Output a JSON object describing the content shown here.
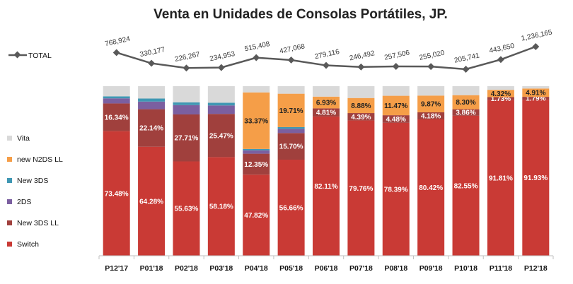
{
  "chart_data": {
    "type": "bar",
    "stacked": true,
    "percent_stacked": true,
    "title": "Venta en Unidades de Consolas Portátiles, JP.",
    "xlabel": "",
    "ylabel": "",
    "ylim": [
      0,
      100
    ],
    "categories": [
      "P12'17",
      "P01'18",
      "P02'18",
      "P03'18",
      "P04'18",
      "P05'18",
      "P06'18",
      "P07'18",
      "P08'18",
      "P09'18",
      "P10'18",
      "P11'18",
      "P12'18"
    ],
    "series": [
      {
        "name": "Switch",
        "color": "#c93a35",
        "values": [
          73.48,
          64.28,
          55.63,
          58.18,
          47.82,
          56.66,
          82.11,
          79.76,
          78.39,
          80.42,
          82.55,
          91.81,
          91.93
        ],
        "labels": [
          "73.48%",
          "64.28%",
          "55.63%",
          "58.18%",
          "47.82%",
          "56.66%",
          "82.11%",
          "79.76%",
          "78.39%",
          "80.42%",
          "82.55%",
          "91.81%",
          "91.93%"
        ]
      },
      {
        "name": "New 3DS LL",
        "color": "#a0403d",
        "values": [
          16.34,
          22.14,
          27.71,
          25.47,
          12.35,
          15.7,
          4.81,
          4.39,
          4.48,
          4.18,
          3.86,
          1.73,
          1.79
        ],
        "labels": [
          "16.34%",
          "22.14%",
          "27.71%",
          "25.47%",
          "12.35%",
          "15.70%",
          "4.81%",
          "4.39%",
          "4.48%",
          "4.18%",
          "3.86%",
          "1.73%",
          "1.79%"
        ]
      },
      {
        "name": "2DS",
        "color": "#7b5fa0",
        "values": [
          3.0,
          4.5,
          5.5,
          5.0,
          2.0,
          2.5,
          0,
          0,
          0,
          0,
          0,
          0,
          0
        ],
        "labels": []
      },
      {
        "name": "New 3DS",
        "color": "#3f97b3",
        "values": [
          1.2,
          1.8,
          1.6,
          1.6,
          0.8,
          1.0,
          0,
          0,
          0,
          0,
          0,
          0,
          0
        ],
        "labels": []
      },
      {
        "name": "new N2DS LL",
        "color": "#f59e48",
        "values": [
          0,
          0,
          0,
          0,
          33.37,
          19.71,
          6.93,
          8.88,
          11.47,
          9.87,
          8.3,
          4.32,
          4.91
        ],
        "labels": [
          "",
          "",
          "",
          "",
          "33.37%",
          "19.71%",
          "6.93%",
          "8.88%",
          "11.47%",
          "9.87%",
          "8.30%",
          "4.32%",
          "4.91%"
        ]
      },
      {
        "name": "Vita",
        "color": "#d9d9d9",
        "values": [
          5.98,
          7.28,
          9.56,
          9.75,
          3.66,
          4.43,
          6.15,
          6.97,
          5.66,
          5.53,
          5.29,
          2.14,
          1.37
        ],
        "labels": []
      }
    ],
    "total_series": {
      "name": "TOTAL",
      "color": "#595959",
      "values": [
        768924,
        330177,
        226267,
        234953,
        515408,
        427068,
        279116,
        246492,
        257506,
        255020,
        205741,
        443650,
        1236165
      ],
      "labels": [
        "768,924",
        "330,177",
        "226,267",
        "234,953",
        "515,408",
        "427,068",
        "279,116",
        "246,492",
        "257,506",
        "255,020",
        "205,741",
        "443,650",
        "1,236,165"
      ]
    },
    "legend": [
      "Vita",
      "new N2DS LL",
      "New 3DS",
      "2DS",
      "New 3DS LL",
      "Switch"
    ],
    "legend_position": "left",
    "grid": false
  }
}
